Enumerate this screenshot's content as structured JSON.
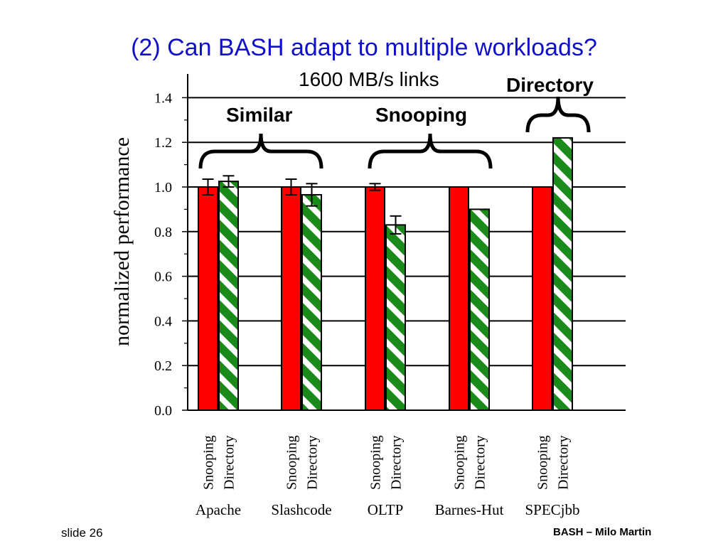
{
  "slide": {
    "title": "(2) Can BASH adapt to multiple workloads?",
    "subtitle": "1600 MB/s links",
    "brace_labels": [
      "Similar",
      "Snooping",
      "Directory"
    ],
    "footer_left": "slide 26",
    "footer_right": "BASH – Milo Martin"
  },
  "colors": {
    "title": "#1010c8",
    "snooping": "#ff0000",
    "directory": "#1a8a1a",
    "stripe": "#ffffff"
  },
  "chart_data": {
    "type": "bar",
    "categories": [
      "Apache",
      "Slashcode",
      "OLTP",
      "Barnes-Hut",
      "SPECjbb"
    ],
    "series": [
      {
        "name": "Snooping",
        "values": [
          1.0,
          1.0,
          1.0,
          1.0,
          1.0
        ],
        "errors": [
          0.035,
          0.035,
          0.015,
          0.0,
          0.0
        ]
      },
      {
        "name": "Directory",
        "values": [
          1.025,
          0.965,
          0.83,
          0.9,
          1.22
        ],
        "errors": [
          0.025,
          0.05,
          0.04,
          0.0,
          0.0
        ]
      }
    ],
    "ylabel": "normalized performance",
    "xlabel": "",
    "ylim": [
      0,
      1.5
    ],
    "yticks": [
      "0.0",
      "0.2",
      "0.4",
      "0.6",
      "0.8",
      "1.0",
      "1.2",
      "1.4"
    ],
    "grid": true,
    "groups": [
      {
        "label": "Similar",
        "categories": [
          "Apache",
          "Slashcode"
        ]
      },
      {
        "label": "Snooping",
        "categories": [
          "OLTP",
          "Barnes-Hut"
        ]
      },
      {
        "label": "Directory",
        "categories": [
          "SPECjbb"
        ]
      }
    ]
  }
}
